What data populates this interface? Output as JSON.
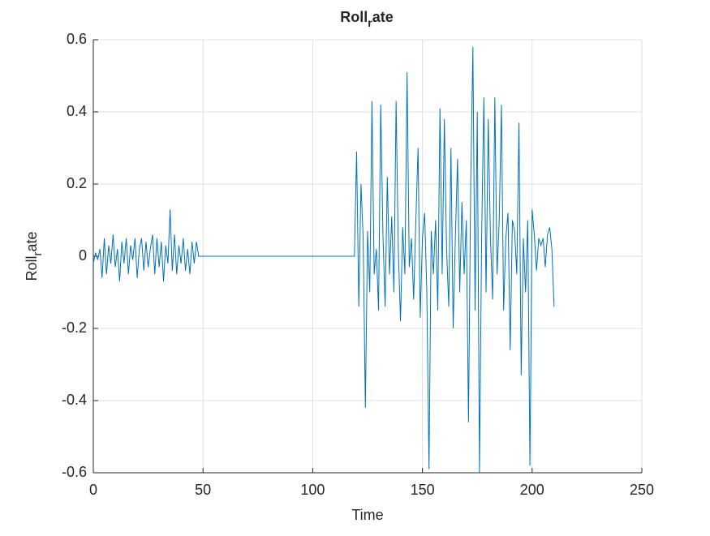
{
  "chart_data": {
    "type": "line",
    "title": [
      "Roll",
      "r",
      "ate"
    ],
    "xlabel": "Time",
    "ylabel": [
      "Roll",
      "r",
      "ate"
    ],
    "xlim": [
      0,
      250
    ],
    "xticks": [
      0,
      50,
      100,
      150,
      200,
      250
    ],
    "ylim": [
      -0.6,
      0.6
    ],
    "yticks": [
      -0.6,
      -0.4,
      -0.2,
      0,
      0.2,
      0.4,
      0.6
    ],
    "grid": true,
    "x": [
      0,
      1,
      2,
      3,
      4,
      5,
      6,
      7,
      8,
      9,
      10,
      11,
      12,
      13,
      14,
      15,
      16,
      17,
      18,
      19,
      20,
      21,
      22,
      23,
      24,
      25,
      26,
      27,
      28,
      29,
      30,
      31,
      32,
      33,
      34,
      35,
      36,
      37,
      38,
      39,
      40,
      41,
      42,
      43,
      44,
      45,
      46,
      47,
      48,
      119,
      120,
      121,
      122,
      123,
      124,
      125,
      126,
      127,
      128,
      129,
      130,
      131,
      132,
      133,
      134,
      135,
      136,
      137,
      138,
      139,
      140,
      141,
      142,
      143,
      144,
      145,
      146,
      147,
      148,
      149,
      150,
      151,
      152,
      153,
      154,
      155,
      156,
      157,
      158,
      159,
      160,
      161,
      162,
      163,
      164,
      165,
      166,
      167,
      168,
      169,
      170,
      171,
      172,
      173,
      174,
      175,
      176,
      177,
      178,
      179,
      180,
      181,
      182,
      183,
      184,
      185,
      186,
      187,
      188,
      189,
      190,
      191,
      192,
      193,
      194,
      195,
      196,
      197,
      198,
      199,
      200,
      201,
      202,
      203,
      204,
      205,
      206,
      207,
      208,
      209,
      210
    ],
    "series": [
      {
        "color": "#0072bd",
        "values": [
          -0.02,
          0.01,
          -0.01,
          0.02,
          -0.06,
          0.05,
          -0.05,
          0.03,
          -0.02,
          0.06,
          -0.03,
          0.02,
          -0.07,
          0.04,
          -0.02,
          0.05,
          -0.05,
          0.03,
          -0.01,
          0.05,
          -0.06,
          0.02,
          0.05,
          -0.04,
          0.04,
          -0.03,
          0.02,
          0.06,
          -0.05,
          0.05,
          -0.03,
          0.04,
          -0.07,
          0.03,
          -0.02,
          0.13,
          -0.04,
          0.06,
          -0.05,
          0.03,
          -0.02,
          0.05,
          -0.04,
          0.02,
          -0.05,
          0.04,
          -0.02,
          0.04,
          0,
          0,
          0.29,
          -0.14,
          0.2,
          0.05,
          -0.42,
          0.07,
          -0.1,
          0.43,
          -0.05,
          0.02,
          -0.15,
          0.42,
          0.06,
          -0.14,
          0.22,
          -0.05,
          0.11,
          -0.1,
          0.43,
          0.02,
          -0.18,
          0.08,
          -0.05,
          0.51,
          -0.03,
          0.05,
          -0.12,
          0.1,
          0.3,
          -0.17,
          0.05,
          0.12,
          -0.1,
          -0.59,
          0.07,
          -0.05,
          0.1,
          -0.15,
          0.41,
          -0.05,
          0.38,
          0.02,
          -0.14,
          0.3,
          -0.2,
          0.05,
          0.27,
          -0.1,
          0.15,
          -0.05,
          0.1,
          -0.46,
          0.2,
          0.58,
          -0.15,
          0.4,
          -0.6,
          0.06,
          0.44,
          -0.1,
          0.38,
          0.05,
          -0.12,
          0.44,
          -0.05,
          0.1,
          0.42,
          -0.15,
          0.05,
          0.12,
          -0.26,
          0.1,
          0.07,
          -0.05,
          0.37,
          -0.33,
          0.05,
          -0.1,
          0.1,
          -0.58,
          0.13,
          0.06,
          -0.04,
          0.05,
          0.03,
          0.05,
          -0.03,
          0.06,
          0.08,
          0.02,
          -0.14
        ]
      }
    ]
  }
}
